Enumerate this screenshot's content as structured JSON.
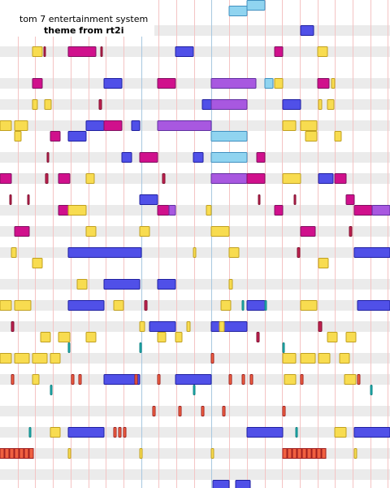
{
  "header": {
    "title": "tom 7 entertainment system",
    "subtitle": "theme from rt2i"
  }
}
